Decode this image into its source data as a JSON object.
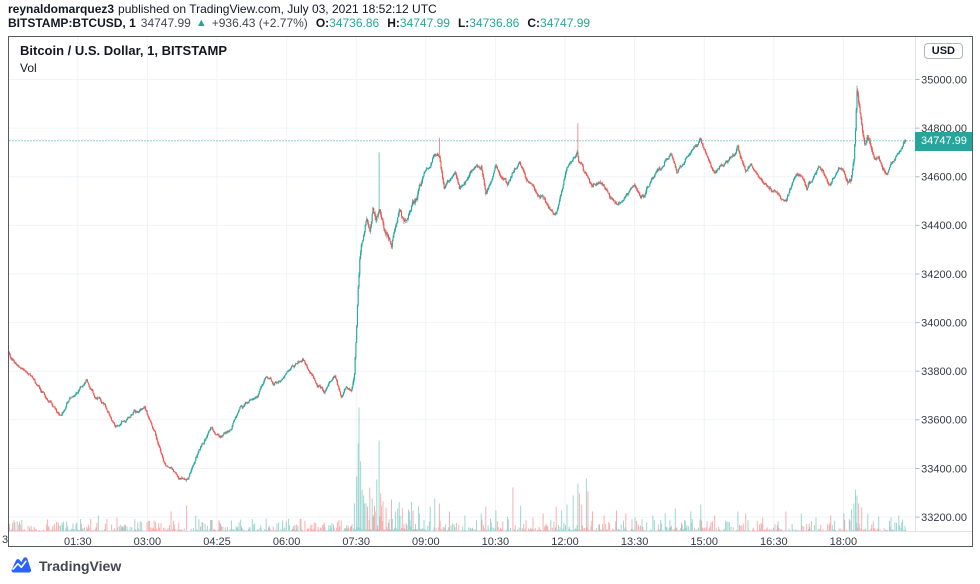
{
  "header": {
    "author": "reynaldomarquez3",
    "published_text": "published on TradingView.com, July 03, 2021 18:52:12 UTC",
    "quote": {
      "symbol": "BITSTAMP:BTCUSD, 1",
      "last": "34747.99",
      "arrow": "▲",
      "change": "+936.43 (+2.77%)",
      "ohlc": [
        {
          "label": "O:",
          "value": "34736.86"
        },
        {
          "label": "H:",
          "value": "34747.99"
        },
        {
          "label": "L:",
          "value": "34736.86"
        },
        {
          "label": "C:",
          "value": "34747.99"
        }
      ]
    }
  },
  "chart": {
    "legend": {
      "title": "Bitcoin / U.S. Dollar, 1, BITSTAMP",
      "indicator": "Vol"
    },
    "currency": "USD",
    "last_price_label": "34747.99"
  },
  "footer": {
    "brand": "TradingView"
  },
  "chart_data": {
    "type": "candlestick",
    "symbol": "BITSTAMP:BTCUSD",
    "exchange": "BITSTAMP",
    "interval_minutes": 1,
    "session_date": "July 03, 2021",
    "last_price": 34747.99,
    "change_abs": 936.43,
    "change_pct": 2.77,
    "ohlc_last": {
      "open": 34736.86,
      "high": 34747.99,
      "low": 34736.86,
      "close": 34747.99
    },
    "y_ticks": [
      "35000.00",
      "34800.00",
      "34600.00",
      "34400.00",
      "34200.00",
      "34000.00",
      "33800.00",
      "33600.00",
      "33400.00",
      "33200.00"
    ],
    "x_ticks": [
      "01:30",
      "03:00",
      "04:25",
      "06:00",
      "07:30",
      "09:00",
      "10:30",
      "12:00",
      "13:30",
      "15:00",
      "16:30",
      "18:00"
    ],
    "x_edge_label": "3",
    "price_line": 34747.99,
    "day_low": 33345,
    "day_high": 34975,
    "colors": {
      "up": "#26a69a",
      "down": "#ef5350",
      "vol_up": "rgba(38,166,154,0.45)",
      "vol_down": "rgba(239,83,80,0.45)",
      "grid": "#f0f3fa",
      "axis_text": "#363a45",
      "separator": "#e0e3eb",
      "price_line": "#26a69a",
      "price_label_bg": "#26a69a"
    },
    "price_anchors": [
      [
        0,
        33880
      ],
      [
        8,
        33830
      ],
      [
        18,
        33800
      ],
      [
        30,
        33770
      ],
      [
        45,
        33705
      ],
      [
        60,
        33640
      ],
      [
        68,
        33615
      ],
      [
        78,
        33680
      ],
      [
        90,
        33720
      ],
      [
        100,
        33760
      ],
      [
        112,
        33700
      ],
      [
        125,
        33655
      ],
      [
        138,
        33565
      ],
      [
        150,
        33600
      ],
      [
        163,
        33640
      ],
      [
        175,
        33650
      ],
      [
        188,
        33560
      ],
      [
        200,
        33425
      ],
      [
        210,
        33390
      ],
      [
        222,
        33360
      ],
      [
        232,
        33350
      ],
      [
        242,
        33440
      ],
      [
        252,
        33510
      ],
      [
        262,
        33565
      ],
      [
        272,
        33530
      ],
      [
        285,
        33555
      ],
      [
        298,
        33640
      ],
      [
        310,
        33680
      ],
      [
        322,
        33700
      ],
      [
        333,
        33785
      ],
      [
        342,
        33745
      ],
      [
        352,
        33760
      ],
      [
        362,
        33805
      ],
      [
        372,
        33835
      ],
      [
        380,
        33845
      ],
      [
        390,
        33790
      ],
      [
        400,
        33745
      ],
      [
        408,
        33720
      ],
      [
        415,
        33765
      ],
      [
        422,
        33780
      ],
      [
        430,
        33695
      ],
      [
        437,
        33740
      ],
      [
        443,
        33720
      ],
      [
        447,
        33790
      ],
      [
        450,
        33990
      ],
      [
        452,
        34150
      ],
      [
        454,
        34260
      ],
      [
        456,
        34320
      ],
      [
        459,
        34370
      ],
      [
        463,
        34420
      ],
      [
        467,
        34380
      ],
      [
        471,
        34450
      ],
      [
        475,
        34420
      ],
      [
        479,
        34480
      ],
      [
        483,
        34430
      ],
      [
        489,
        34360
      ],
      [
        495,
        34310
      ],
      [
        500,
        34400
      ],
      [
        506,
        34470
      ],
      [
        511,
        34420
      ],
      [
        517,
        34450
      ],
      [
        524,
        34510
      ],
      [
        531,
        34560
      ],
      [
        538,
        34620
      ],
      [
        545,
        34650
      ],
      [
        551,
        34690
      ],
      [
        557,
        34680
      ],
      [
        563,
        34560
      ],
      [
        570,
        34590
      ],
      [
        577,
        34620
      ],
      [
        583,
        34540
      ],
      [
        590,
        34570
      ],
      [
        597,
        34610
      ],
      [
        604,
        34650
      ],
      [
        611,
        34640
      ],
      [
        617,
        34530
      ],
      [
        624,
        34570
      ],
      [
        630,
        34640
      ],
      [
        637,
        34610
      ],
      [
        645,
        34580
      ],
      [
        652,
        34620
      ],
      [
        660,
        34650
      ],
      [
        668,
        34600
      ],
      [
        675,
        34570
      ],
      [
        683,
        34540
      ],
      [
        691,
        34510
      ],
      [
        700,
        34465
      ],
      [
        708,
        34450
      ],
      [
        715,
        34540
      ],
      [
        722,
        34640
      ],
      [
        730,
        34680
      ],
      [
        735,
        34690
      ],
      [
        737,
        34660
      ],
      [
        742,
        34640
      ],
      [
        748,
        34600
      ],
      [
        755,
        34560
      ],
      [
        762,
        34590
      ],
      [
        770,
        34570
      ],
      [
        778,
        34520
      ],
      [
        786,
        34490
      ],
      [
        795,
        34505
      ],
      [
        803,
        34550
      ],
      [
        810,
        34560
      ],
      [
        817,
        34505
      ],
      [
        825,
        34550
      ],
      [
        833,
        34600
      ],
      [
        841,
        34640
      ],
      [
        849,
        34665
      ],
      [
        856,
        34690
      ],
      [
        864,
        34620
      ],
      [
        874,
        34660
      ],
      [
        882,
        34700
      ],
      [
        890,
        34730
      ],
      [
        895,
        34750
      ],
      [
        901,
        34700
      ],
      [
        906,
        34660
      ],
      [
        913,
        34620
      ],
      [
        919,
        34650
      ],
      [
        925,
        34660
      ],
      [
        932,
        34680
      ],
      [
        938,
        34690
      ],
      [
        943,
        34720
      ],
      [
        948,
        34660
      ],
      [
        953,
        34610
      ],
      [
        958,
        34640
      ],
      [
        963,
        34630
      ],
      [
        970,
        34600
      ],
      [
        977,
        34570
      ],
      [
        984,
        34550
      ],
      [
        991,
        34535
      ],
      [
        998,
        34515
      ],
      [
        1005,
        34500
      ],
      [
        1012,
        34560
      ],
      [
        1018,
        34620
      ],
      [
        1025,
        34615
      ],
      [
        1032,
        34560
      ],
      [
        1040,
        34590
      ],
      [
        1047,
        34640
      ],
      [
        1053,
        34630
      ],
      [
        1060,
        34570
      ],
      [
        1067,
        34600
      ],
      [
        1073,
        34640
      ],
      [
        1080,
        34620
      ],
      [
        1085,
        34580
      ],
      [
        1089,
        34590
      ],
      [
        1093,
        34660
      ],
      [
        1095,
        34780
      ],
      [
        1097,
        34935
      ],
      [
        1099,
        34880
      ],
      [
        1103,
        34800
      ],
      [
        1107,
        34730
      ],
      [
        1111,
        34760
      ],
      [
        1115,
        34720
      ],
      [
        1120,
        34670
      ],
      [
        1125,
        34690
      ],
      [
        1130,
        34640
      ],
      [
        1136,
        34615
      ],
      [
        1141,
        34650
      ],
      [
        1146,
        34665
      ],
      [
        1151,
        34700
      ],
      [
        1156,
        34730
      ],
      [
        1160,
        34748
      ]
    ],
    "wick_highs": [
      [
        479,
        34700
      ],
      [
        557,
        34760
      ],
      [
        736,
        34820
      ],
      [
        1097,
        34975
      ]
    ],
    "wick_lows": [
      [
        230,
        33345
      ]
    ],
    "volume_spikes": [
      [
        50,
        12,
        "d"
      ],
      [
        88,
        9,
        "u"
      ],
      [
        116,
        16,
        "u"
      ],
      [
        140,
        14,
        "d"
      ],
      [
        163,
        8,
        "u"
      ],
      [
        188,
        11,
        "d"
      ],
      [
        210,
        20,
        "d"
      ],
      [
        230,
        26,
        "d"
      ],
      [
        242,
        16,
        "u"
      ],
      [
        262,
        10,
        "u"
      ],
      [
        300,
        11,
        "u"
      ],
      [
        333,
        13,
        "u"
      ],
      [
        362,
        8,
        "u"
      ],
      [
        395,
        9,
        "d"
      ],
      [
        430,
        11,
        "d"
      ],
      [
        447,
        28,
        "u"
      ],
      [
        450,
        55,
        "u"
      ],
      [
        452,
        88,
        "u"
      ],
      [
        453,
        124,
        "u"
      ],
      [
        455,
        70,
        "u"
      ],
      [
        457,
        42,
        "u"
      ],
      [
        459,
        36,
        "u"
      ],
      [
        462,
        28,
        "u"
      ],
      [
        464,
        25,
        "d"
      ],
      [
        467,
        44,
        "d"
      ],
      [
        470,
        33,
        "u"
      ],
      [
        473,
        26,
        "d"
      ],
      [
        476,
        52,
        "u"
      ],
      [
        479,
        91,
        "u"
      ],
      [
        481,
        38,
        "d"
      ],
      [
        484,
        30,
        "d"
      ],
      [
        488,
        24,
        "d"
      ],
      [
        495,
        32,
        "d"
      ],
      [
        500,
        20,
        "u"
      ],
      [
        506,
        16,
        "u"
      ],
      [
        517,
        22,
        "u"
      ],
      [
        531,
        18,
        "u"
      ],
      [
        545,
        25,
        "u"
      ],
      [
        551,
        33,
        "u"
      ],
      [
        557,
        28,
        "d"
      ],
      [
        570,
        20,
        "d"
      ],
      [
        590,
        16,
        "u"
      ],
      [
        611,
        18,
        "u"
      ],
      [
        617,
        25,
        "d"
      ],
      [
        630,
        21,
        "u"
      ],
      [
        645,
        15,
        "u"
      ],
      [
        652,
        44,
        "d"
      ],
      [
        662,
        26,
        "u"
      ],
      [
        678,
        14,
        "d"
      ],
      [
        691,
        18,
        "d"
      ],
      [
        708,
        25,
        "d"
      ],
      [
        715,
        21,
        "u"
      ],
      [
        722,
        27,
        "u"
      ],
      [
        730,
        36,
        "u"
      ],
      [
        736,
        48,
        "u"
      ],
      [
        738,
        38,
        "d"
      ],
      [
        741,
        27,
        "d"
      ],
      [
        747,
        53,
        "u"
      ],
      [
        749,
        40,
        "d"
      ],
      [
        755,
        20,
        "d"
      ],
      [
        770,
        16,
        "d"
      ],
      [
        786,
        21,
        "d"
      ],
      [
        798,
        18,
        "d"
      ],
      [
        810,
        14,
        "u"
      ],
      [
        833,
        16,
        "u"
      ],
      [
        849,
        18,
        "u"
      ],
      [
        862,
        23,
        "u"
      ],
      [
        882,
        20,
        "u"
      ],
      [
        895,
        27,
        "u"
      ],
      [
        913,
        16,
        "d"
      ],
      [
        943,
        20,
        "u"
      ],
      [
        953,
        18,
        "d"
      ],
      [
        975,
        14,
        "d"
      ],
      [
        1005,
        20,
        "d"
      ],
      [
        1025,
        18,
        "u"
      ],
      [
        1044,
        14,
        "u"
      ],
      [
        1063,
        16,
        "d"
      ],
      [
        1080,
        18,
        "u"
      ],
      [
        1090,
        22,
        "u"
      ],
      [
        1093,
        28,
        "u"
      ],
      [
        1095,
        42,
        "u"
      ],
      [
        1097,
        36,
        "u"
      ],
      [
        1099,
        28,
        "d"
      ],
      [
        1103,
        24,
        "d"
      ],
      [
        1111,
        18,
        "u"
      ],
      [
        1125,
        15,
        "u"
      ],
      [
        1141,
        14,
        "u"
      ],
      [
        1151,
        16,
        "u"
      ],
      [
        1156,
        12,
        "u"
      ]
    ]
  }
}
